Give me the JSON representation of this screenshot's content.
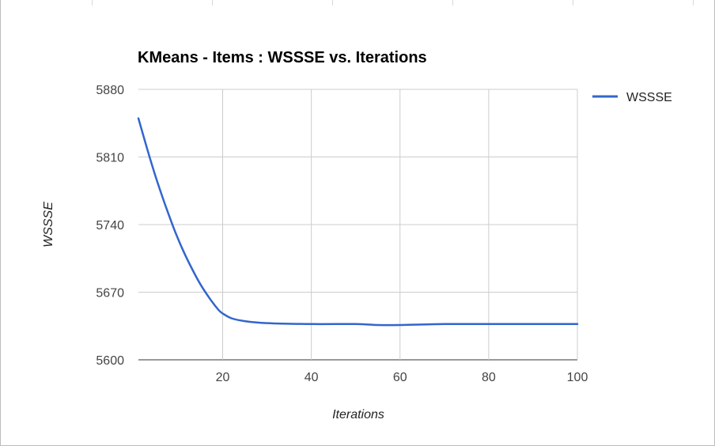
{
  "chart_data": {
    "type": "line",
    "title": "KMeans - Items : WSSSE vs. Iterations",
    "xlabel": "Iterations",
    "ylabel": "WSSSE",
    "xlim": [
      1,
      100
    ],
    "ylim": [
      5600,
      5880
    ],
    "x_ticks": [
      20,
      40,
      60,
      80,
      100
    ],
    "y_ticks": [
      5600,
      5670,
      5740,
      5810,
      5880
    ],
    "grid": true,
    "legend_position": "right",
    "series": [
      {
        "name": "WSSSE",
        "color": "#3366cc",
        "x": [
          1,
          3,
          5,
          7,
          9,
          11,
          13,
          15,
          17,
          19,
          20,
          22,
          25,
          30,
          40,
          50,
          55,
          60,
          70,
          80,
          90,
          100
        ],
        "y": [
          5850,
          5818,
          5788,
          5761,
          5736,
          5714,
          5695,
          5678,
          5664,
          5652,
          5648,
          5643,
          5640,
          5638,
          5637,
          5637,
          5636,
          5636,
          5637,
          5637,
          5637,
          5637
        ]
      }
    ]
  }
}
